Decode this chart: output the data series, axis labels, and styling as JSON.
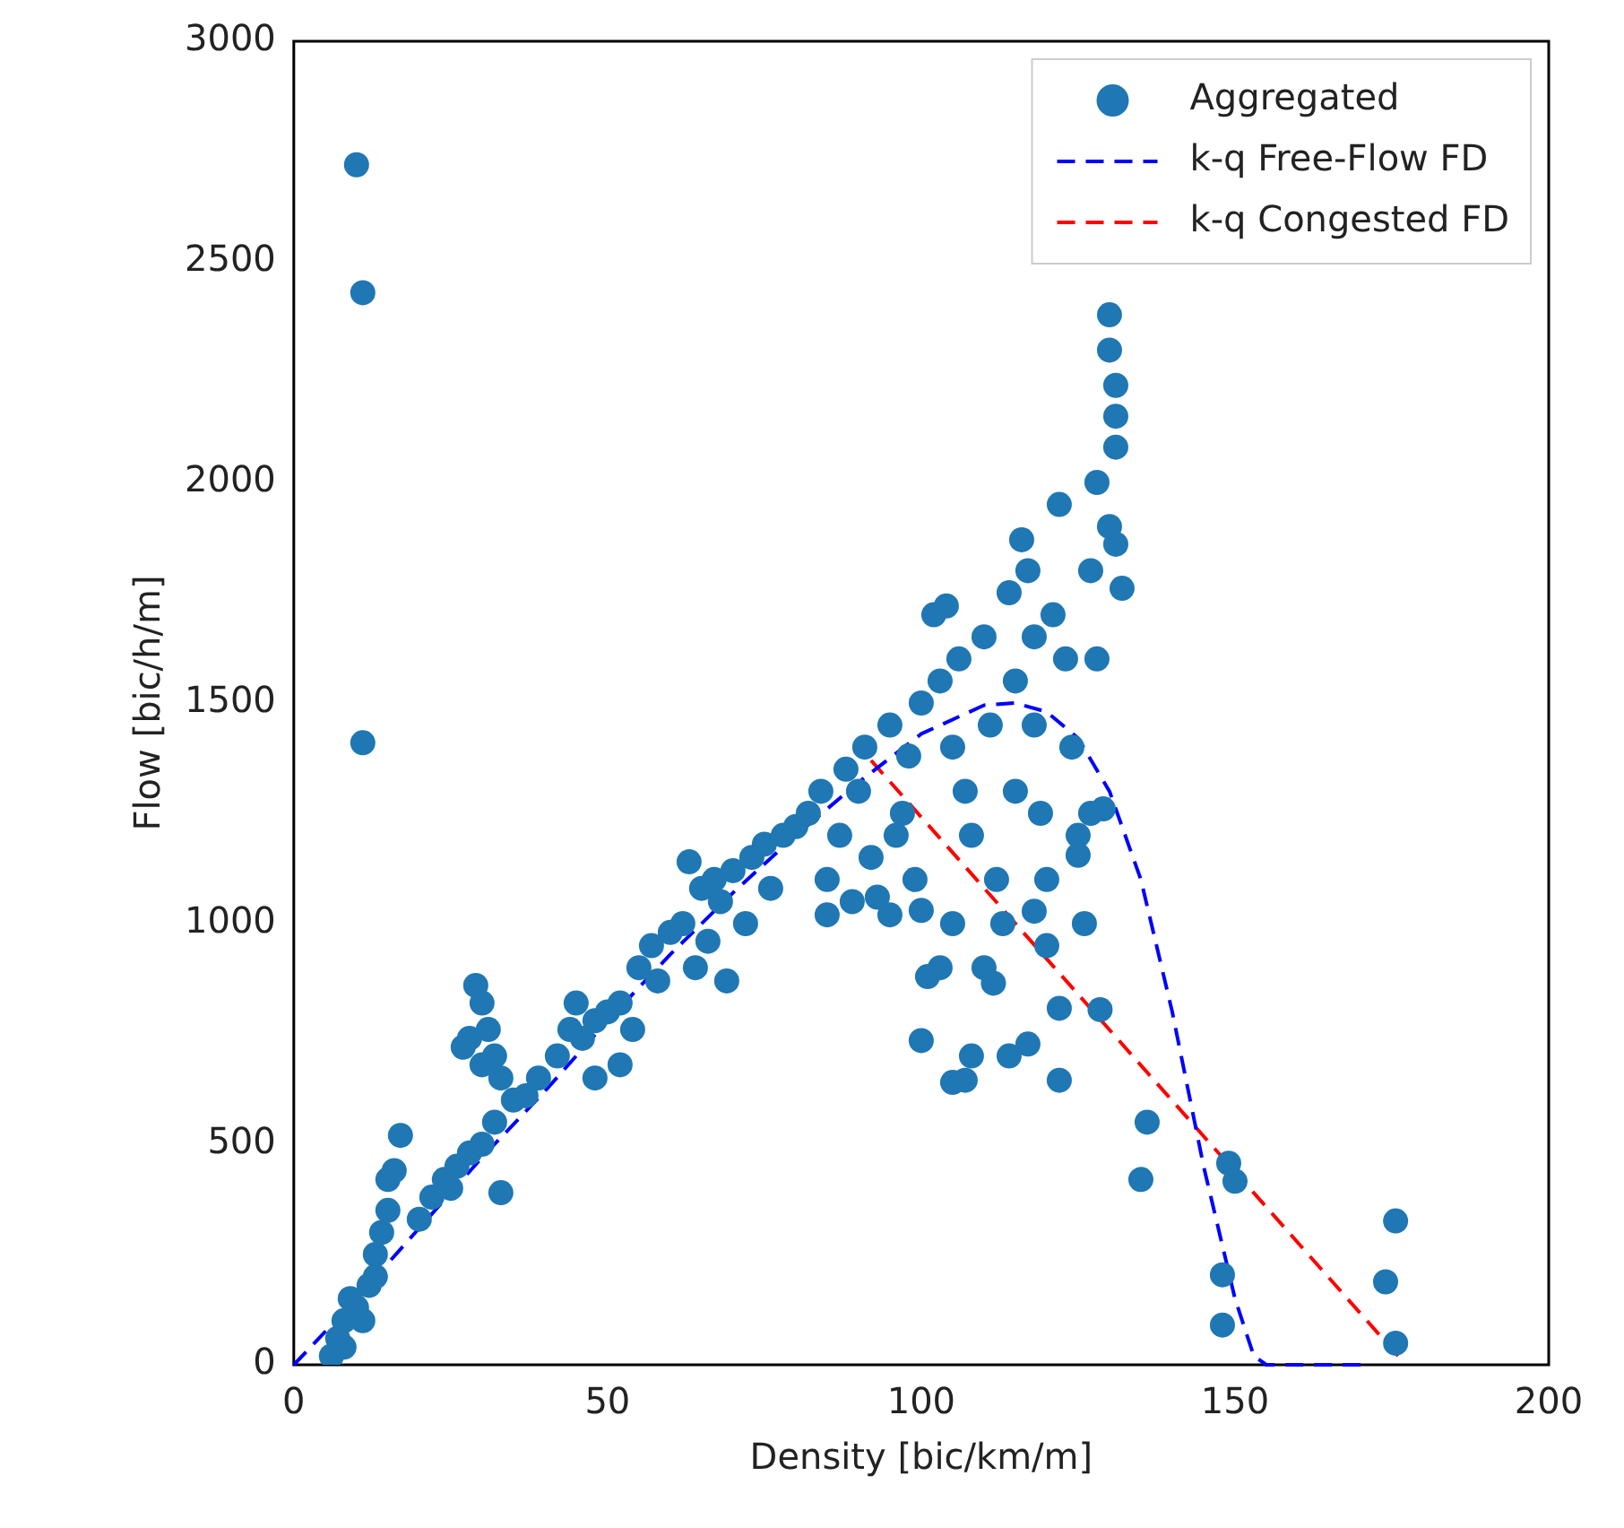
{
  "chart_data": {
    "type": "scatter",
    "xlabel": "Density [bic/km/m]",
    "ylabel": "Flow [bic/h/m]",
    "xlim": [
      0,
      200
    ],
    "ylim": [
      0,
      3000
    ],
    "xticks": [
      0,
      50,
      100,
      150,
      200
    ],
    "yticks": [
      0,
      500,
      1000,
      1500,
      2000,
      2500,
      3000
    ],
    "legend": "top right",
    "grid": false,
    "series": [
      {
        "name": "Aggregated",
        "type": "scatter",
        "marker": "circle",
        "color": "#1f77b4",
        "x": [
          10,
          11,
          11,
          6,
          7,
          8,
          9,
          10,
          12,
          13,
          14,
          15,
          15,
          16,
          17,
          13,
          11,
          8,
          20,
          22,
          24,
          26,
          28,
          30,
          32,
          33,
          35,
          28,
          29,
          30,
          31,
          32,
          33,
          30,
          27,
          25,
          37,
          39,
          42,
          44,
          45,
          46,
          48,
          50,
          52,
          52,
          48,
          55,
          57,
          58,
          60,
          54,
          62,
          63,
          65,
          67,
          68,
          70,
          72,
          73,
          75,
          76,
          78,
          80,
          66,
          69,
          64,
          82,
          84,
          85,
          85,
          87,
          88,
          90,
          91,
          92,
          93,
          95,
          95,
          97,
          98,
          99,
          100,
          100,
          96,
          89,
          102,
          103,
          104,
          105,
          105,
          106,
          107,
          108,
          110,
          110,
          111,
          112,
          113,
          103,
          101,
          100,
          107,
          108,
          105,
          114,
          115,
          115,
          116,
          117,
          118,
          118,
          119,
          120,
          120,
          121,
          122,
          123,
          124,
          125,
          126,
          127,
          128,
          128,
          129,
          130,
          130,
          131,
          131,
          131,
          130,
          131,
          132,
          127,
          117,
          122,
          114,
          111.5,
          118,
          125,
          122,
          128.5,
          136,
          135,
          149,
          150,
          148,
          148,
          175.6,
          174,
          175.6
        ],
        "values": [
          2720,
          2430,
          1410,
          20,
          60,
          100,
          150,
          130,
          180,
          250,
          300,
          350,
          420,
          440,
          520,
          200,
          100,
          40,
          330,
          380,
          420,
          450,
          480,
          500,
          550,
          390,
          600,
          740,
          860,
          820,
          760,
          700,
          650,
          680,
          720,
          400,
          610,
          650,
          700,
          760,
          820,
          740,
          780,
          800,
          820,
          680,
          650,
          900,
          950,
          870,
          980,
          760,
          1000,
          1140,
          1080,
          1100,
          1050,
          1120,
          1000,
          1150,
          1180,
          1080,
          1200,
          1220,
          960,
          870,
          900,
          1250,
          1300,
          1100,
          1020,
          1200,
          1350,
          1300,
          1400,
          1150,
          1060,
          1450,
          1020,
          1250,
          1380,
          1100,
          1500,
          1030,
          1200,
          1050,
          1700,
          1550,
          1720,
          1400,
          1000,
          1600,
          1300,
          1200,
          1650,
          900,
          1450,
          1100,
          1000,
          900,
          880,
          735,
          645,
          700,
          640,
          1750,
          1550,
          1300,
          1870,
          1800,
          1650,
          1450,
          1250,
          1100,
          950,
          1700,
          1950,
          1600,
          1400,
          1200,
          1000,
          1800,
          1600,
          2000,
          1260,
          2380,
          2300,
          2220,
          2150,
          2080,
          1900,
          1860,
          1760,
          1250,
          727,
          645,
          700,
          865,
          1028,
          1155,
          808,
          805,
          550,
          420,
          457,
          416,
          204,
          90,
          326,
          188,
          49
        ]
      },
      {
        "name": "k-q Free-Flow FD",
        "type": "line",
        "line_style": "dashed",
        "marker": "none",
        "color": "#0000ff",
        "x": [
          0,
          10,
          20,
          30,
          40,
          50,
          60,
          70,
          80,
          90,
          100,
          110,
          115,
          120,
          125,
          130,
          135,
          140,
          145,
          150,
          153,
          155,
          170
        ],
        "values": [
          0,
          150,
          310,
          470,
          620,
          780,
          930,
          1070,
          1200,
          1320,
          1430,
          1495,
          1500,
          1480,
          1420,
          1300,
          1100,
          800,
          450,
          150,
          20,
          0,
          0
        ]
      },
      {
        "name": "k-q Congested FD",
        "type": "line",
        "line_style": "dashed",
        "marker": "none",
        "color": "#ff0000",
        "x": [
          92,
          176
        ],
        "values": [
          1370,
          20
        ]
      }
    ]
  }
}
